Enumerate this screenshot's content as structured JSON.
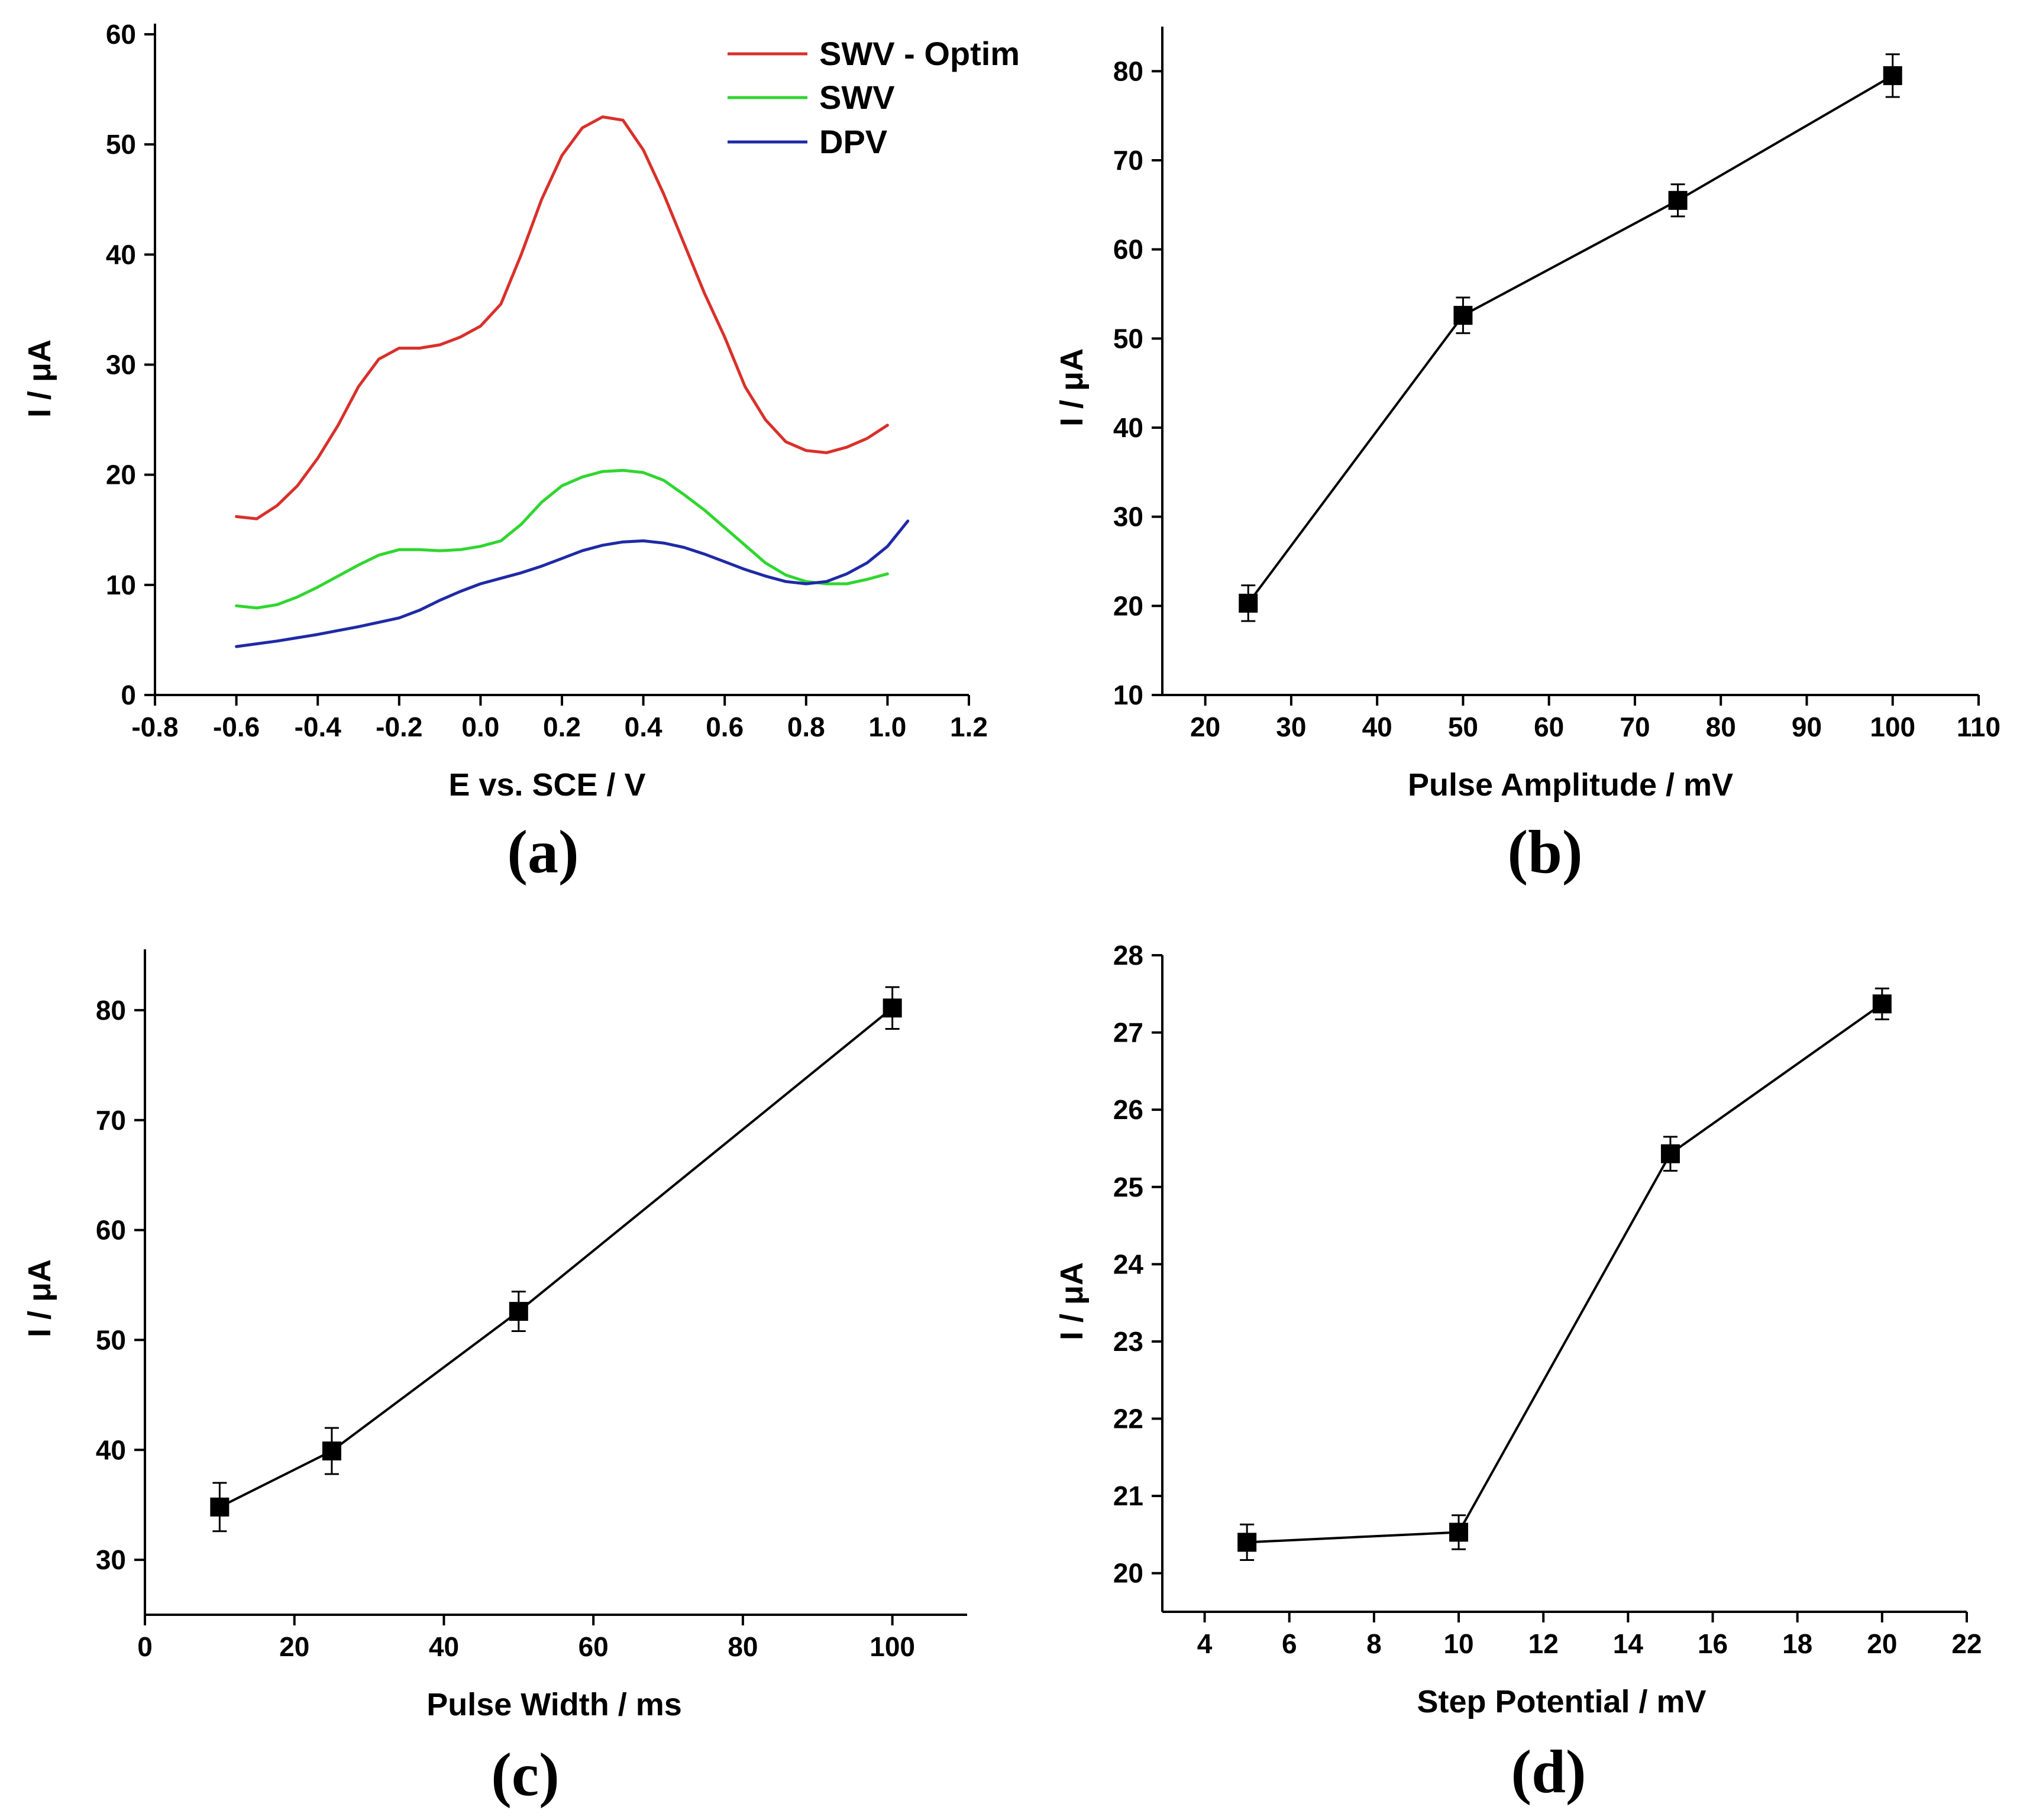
{
  "figure": {
    "panels": [
      "(a)",
      "(b)",
      "(c)",
      "(d)"
    ]
  },
  "chart_data": [
    {
      "id": "a",
      "type": "line",
      "panel_label": "(a)",
      "xlabel": "E vs. SCE / V",
      "ylabel": "I / μA",
      "xlim": [
        -0.8,
        1.2
      ],
      "ylim": [
        0,
        60
      ],
      "xticks": [
        -0.8,
        -0.6,
        -0.4,
        -0.2,
        0.0,
        0.2,
        0.4,
        0.6,
        0.8,
        1.0,
        1.2
      ],
      "xtick_labels": [
        "-0.8",
        "-0.6",
        "-0.4",
        "-0.2",
        "0.0",
        "0.2",
        "0.4",
        "0.6",
        "0.8",
        "1.0",
        "1.2"
      ],
      "yticks": [
        0,
        10,
        20,
        30,
        40,
        50,
        60
      ],
      "ytick_labels": [
        "0",
        "10",
        "20",
        "30",
        "40",
        "50",
        "60"
      ],
      "legend": "top-right",
      "series": [
        {
          "name": "SWV - Optim",
          "color": "#d9302a",
          "x": [
            -0.6,
            -0.55,
            -0.5,
            -0.45,
            -0.4,
            -0.35,
            -0.3,
            -0.25,
            -0.2,
            -0.15,
            -0.1,
            -0.05,
            0.0,
            0.05,
            0.1,
            0.15,
            0.2,
            0.25,
            0.3,
            0.35,
            0.4,
            0.45,
            0.5,
            0.55,
            0.6,
            0.65,
            0.7,
            0.75,
            0.8,
            0.85,
            0.9,
            0.95,
            1.0
          ],
          "y": [
            16.2,
            16.0,
            17.2,
            19.0,
            21.5,
            24.5,
            28.0,
            30.5,
            31.5,
            31.5,
            31.8,
            32.5,
            33.5,
            35.5,
            40.0,
            45.0,
            49.0,
            51.5,
            52.5,
            52.2,
            49.5,
            45.5,
            41.0,
            36.5,
            32.5,
            28.0,
            25.0,
            23.0,
            22.2,
            22.0,
            22.5,
            23.3,
            24.5
          ]
        },
        {
          "name": "SWV",
          "color": "#2fd62f",
          "x": [
            -0.6,
            -0.55,
            -0.5,
            -0.45,
            -0.4,
            -0.35,
            -0.3,
            -0.25,
            -0.2,
            -0.15,
            -0.1,
            -0.05,
            0.0,
            0.05,
            0.1,
            0.15,
            0.2,
            0.25,
            0.3,
            0.35,
            0.4,
            0.45,
            0.5,
            0.55,
            0.6,
            0.65,
            0.7,
            0.75,
            0.8,
            0.85,
            0.9,
            0.95,
            1.0
          ],
          "y": [
            8.1,
            7.9,
            8.2,
            8.9,
            9.8,
            10.8,
            11.8,
            12.7,
            13.2,
            13.2,
            13.1,
            13.2,
            13.5,
            14.0,
            15.5,
            17.5,
            19.0,
            19.8,
            20.3,
            20.4,
            20.2,
            19.5,
            18.2,
            16.8,
            15.2,
            13.6,
            12.0,
            10.9,
            10.3,
            10.1,
            10.1,
            10.5,
            11.0
          ]
        },
        {
          "name": "DPV",
          "color": "#1f2aa6",
          "x": [
            -0.6,
            -0.5,
            -0.4,
            -0.3,
            -0.2,
            -0.15,
            -0.1,
            -0.05,
            0.0,
            0.05,
            0.1,
            0.15,
            0.2,
            0.25,
            0.3,
            0.35,
            0.4,
            0.45,
            0.5,
            0.55,
            0.6,
            0.65,
            0.7,
            0.75,
            0.8,
            0.85,
            0.9,
            0.95,
            1.0,
            1.05
          ],
          "y": [
            4.4,
            4.9,
            5.5,
            6.2,
            7.0,
            7.7,
            8.6,
            9.4,
            10.1,
            10.6,
            11.1,
            11.7,
            12.4,
            13.1,
            13.6,
            13.9,
            14.0,
            13.8,
            13.4,
            12.8,
            12.1,
            11.4,
            10.8,
            10.3,
            10.1,
            10.3,
            11.0,
            12.0,
            13.5,
            15.8
          ]
        }
      ]
    },
    {
      "id": "b",
      "type": "line",
      "panel_label": "(b)",
      "xlabel": "Pulse Amplitude / mV",
      "ylabel": "I / μA",
      "xlim": [
        15,
        110
      ],
      "ylim": [
        10,
        85
      ],
      "xticks": [
        20,
        30,
        40,
        50,
        60,
        70,
        80,
        90,
        100,
        110
      ],
      "xtick_labels": [
        "20",
        "30",
        "40",
        "50",
        "60",
        "70",
        "80",
        "90",
        "100",
        "110"
      ],
      "yticks": [
        10,
        20,
        30,
        40,
        50,
        60,
        70,
        80
      ],
      "ytick_labels": [
        "10",
        "20",
        "30",
        "40",
        "50",
        "60",
        "70",
        "80"
      ],
      "marker": "square",
      "x": [
        25,
        50,
        75,
        100
      ],
      "y": [
        20.3,
        52.6,
        65.5,
        79.5
      ],
      "yerr": [
        2.0,
        2.0,
        1.8,
        2.4
      ]
    },
    {
      "id": "c",
      "type": "line",
      "panel_label": "(c)",
      "xlabel": "Pulse Width / ms",
      "ylabel": "I / μA",
      "xlim": [
        0,
        110
      ],
      "ylim": [
        25,
        85
      ],
      "xticks": [
        0,
        20,
        40,
        60,
        80,
        100
      ],
      "xtick_labels": [
        "0",
        "20",
        "40",
        "60",
        "80",
        "100"
      ],
      "yticks": [
        30,
        40,
        50,
        60,
        70,
        80
      ],
      "ytick_labels": [
        "30",
        "40",
        "50",
        "60",
        "70",
        "80"
      ],
      "marker": "square",
      "x": [
        10,
        25,
        50,
        100
      ],
      "y": [
        34.8,
        39.9,
        52.6,
        80.2
      ],
      "yerr": [
        2.2,
        2.1,
        1.8,
        1.9
      ]
    },
    {
      "id": "d",
      "type": "line",
      "panel_label": "(d)",
      "xlabel": "Step Potential / mV",
      "ylabel": "I / μA",
      "xlim": [
        3,
        22
      ],
      "ylim": [
        19.5,
        28
      ],
      "xticks": [
        4,
        6,
        8,
        10,
        12,
        14,
        16,
        18,
        20,
        22
      ],
      "xtick_labels": [
        "4",
        "6",
        "8",
        "10",
        "12",
        "14",
        "16",
        "18",
        "20",
        "22"
      ],
      "yticks": [
        20,
        21,
        22,
        23,
        24,
        25,
        26,
        27,
        28
      ],
      "ytick_labels": [
        "20",
        "21",
        "22",
        "23",
        "24",
        "25",
        "26",
        "27",
        "28"
      ],
      "marker": "square",
      "x": [
        5,
        10,
        15,
        20
      ],
      "y": [
        20.4,
        20.53,
        25.43,
        27.37
      ],
      "yerr": [
        0.23,
        0.22,
        0.22,
        0.2
      ]
    }
  ]
}
